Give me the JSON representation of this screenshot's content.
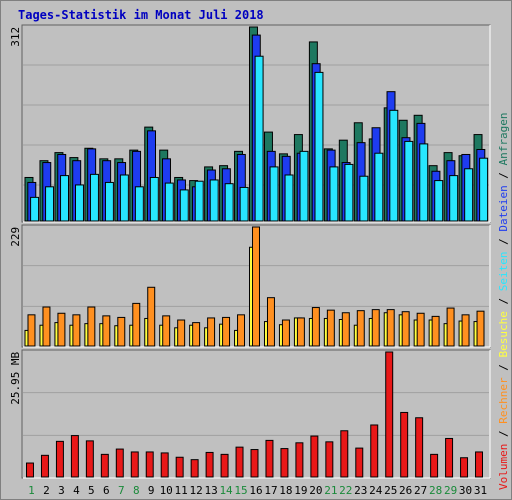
{
  "title": "Tages-Statistik im Monat Juli 2018",
  "colors": {
    "background": "#c0c0c0",
    "title": "#0000c0",
    "frame_dark": "#606060",
    "frame_light": "#ffffff",
    "gridline": "#a0a0a0",
    "hits": "#1e7860",
    "files": "#1e3cf0",
    "pages": "#28e6ff",
    "visits": "#ffff40",
    "sites": "#ff9020",
    "kbytes": "#e81818",
    "day_weekday": "#000000",
    "day_weekend": "#1a8a3a"
  },
  "legend_right": [
    {
      "label": "Volumen",
      "color": "#e81818"
    },
    {
      "label": "/",
      "color": "#000000"
    },
    {
      "label": "Rechner",
      "color": "#ff9020"
    },
    {
      "label": "/",
      "color": "#000000"
    },
    {
      "label": "Besuche",
      "color": "#ffff40"
    },
    {
      "label": "/",
      "color": "#000000"
    },
    {
      "label": "Seiten",
      "color": "#28e6ff"
    },
    {
      "label": "/",
      "color": "#000000"
    },
    {
      "label": "Dateien",
      "color": "#1e3cf0"
    },
    {
      "label": "/",
      "color": "#000000"
    },
    {
      "label": "Anfragen",
      "color": "#1e7860"
    }
  ],
  "chart_data": [
    {
      "type": "bar",
      "panel": "requests",
      "max_label": "312",
      "ylim": [
        0,
        312
      ],
      "categories": [
        "1",
        "2",
        "3",
        "4",
        "5",
        "6",
        "7",
        "8",
        "9",
        "10",
        "11",
        "12",
        "13",
        "14",
        "15",
        "16",
        "17",
        "18",
        "19",
        "20",
        "21",
        "22",
        "23",
        "24",
        "25",
        "26",
        "27",
        "28",
        "29",
        "30",
        "31"
      ],
      "series": [
        {
          "name": "Anfragen",
          "values": [
            70,
            97,
            110,
            102,
            117,
            100,
            100,
            114,
            151,
            114,
            70,
            65,
            87,
            89,
            112,
            312,
            143,
            108,
            139,
            288,
            116,
            130,
            158,
            132,
            182,
            162,
            170,
            89,
            110,
            105,
            139
          ]
        },
        {
          "name": "Dateien",
          "values": [
            62,
            94,
            107,
            97,
            116,
            97,
            94,
            112,
            145,
            100,
            66,
            55,
            82,
            84,
            107,
            299,
            112,
            104,
            109,
            253,
            114,
            94,
            126,
            150,
            208,
            134,
            157,
            80,
            97,
            107,
            115
          ]
        },
        {
          "name": "Seiten",
          "values": [
            38,
            55,
            73,
            58,
            75,
            62,
            74,
            55,
            70,
            61,
            50,
            64,
            66,
            60,
            54,
            265,
            87,
            74,
            112,
            239,
            87,
            91,
            72,
            109,
            178,
            128,
            124,
            65,
            73,
            84,
            101
          ]
        }
      ]
    },
    {
      "type": "bar",
      "panel": "visits_sites",
      "max_label": "229",
      "ylim": [
        0,
        229
      ],
      "categories": [
        "1",
        "2",
        "3",
        "4",
        "5",
        "6",
        "7",
        "8",
        "9",
        "10",
        "11",
        "12",
        "13",
        "14",
        "15",
        "16",
        "17",
        "18",
        "19",
        "20",
        "21",
        "22",
        "23",
        "24",
        "25",
        "26",
        "27",
        "28",
        "29",
        "30",
        "31"
      ],
      "series": [
        {
          "name": "Besuche",
          "values": [
            30,
            40,
            45,
            40,
            43,
            43,
            39,
            40,
            53,
            40,
            35,
            40,
            35,
            42,
            30,
            190,
            47,
            41,
            54,
            53,
            53,
            51,
            40,
            53,
            64,
            60,
            50,
            50,
            43,
            48,
            47
          ]
        },
        {
          "name": "Rechner",
          "values": [
            60,
            75,
            63,
            60,
            75,
            58,
            55,
            82,
            113,
            58,
            50,
            45,
            54,
            55,
            60,
            229,
            93,
            50,
            54,
            74,
            69,
            64,
            68,
            70,
            70,
            66,
            63,
            57,
            73,
            60,
            67
          ]
        }
      ]
    },
    {
      "type": "bar",
      "panel": "volume",
      "max_label": "25.95 MB",
      "ylim": [
        0,
        25.95
      ],
      "categories": [
        "1",
        "2",
        "3",
        "4",
        "5",
        "6",
        "7",
        "8",
        "9",
        "10",
        "11",
        "12",
        "13",
        "14",
        "15",
        "16",
        "17",
        "18",
        "19",
        "20",
        "21",
        "22",
        "23",
        "24",
        "25",
        "26",
        "27",
        "28",
        "29",
        "30",
        "31"
      ],
      "series": [
        {
          "name": "Volumen",
          "values": [
            2.9,
            4.5,
            7.4,
            8.6,
            7.5,
            4.7,
            5.8,
            5.2,
            5.2,
            5.0,
            4.1,
            3.6,
            5.1,
            4.7,
            6.2,
            5.7,
            7.6,
            5.9,
            7.1,
            8.5,
            7.3,
            9.6,
            6.0,
            10.8,
            25.95,
            13.4,
            12.3,
            4.7,
            8.0,
            4.0,
            5.2
          ]
        }
      ]
    }
  ],
  "weekend_days": [
    1,
    7,
    8,
    14,
    15,
    21,
    22,
    28,
    29
  ]
}
